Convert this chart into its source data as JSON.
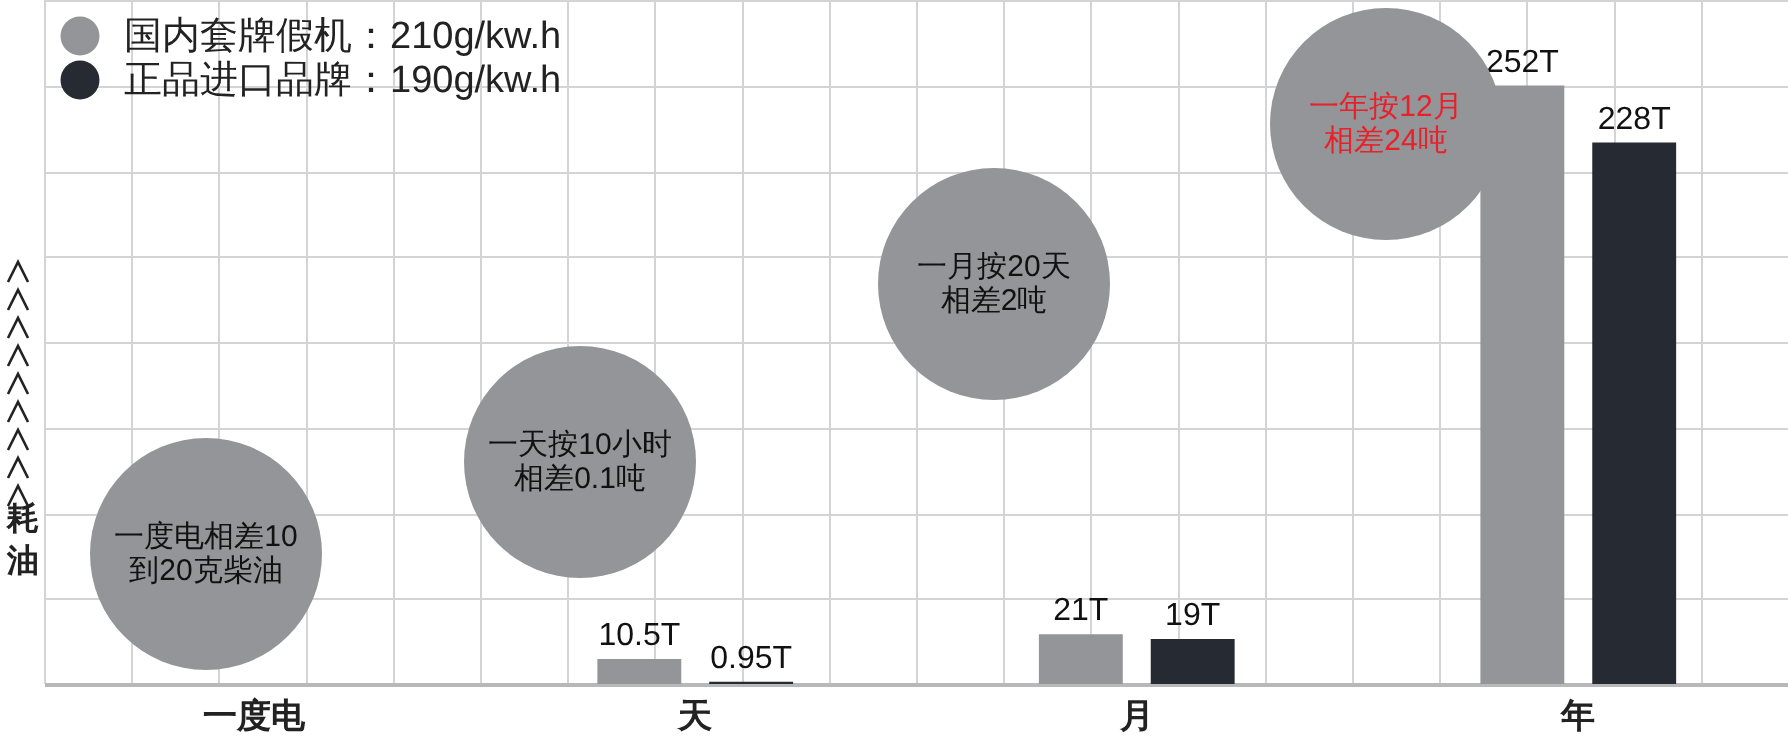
{
  "chart_data": {
    "type": "bar",
    "ylabel": "耗油",
    "categories": [
      "一度电",
      "天",
      "月",
      "年"
    ],
    "series": [
      {
        "name": "国内套牌假机：210g/kw.h",
        "color": "#939599",
        "values": [
          0.00021,
          10.5,
          21,
          252
        ],
        "value_labels": [
          null,
          "10.5T",
          "21T",
          "252T"
        ]
      },
      {
        "name": "正品进口品牌：190g/kw.h",
        "color": "#262b33",
        "values": [
          0.00019,
          0.95,
          19,
          228
        ],
        "value_labels": [
          null,
          "0.95T",
          "19T",
          "228T"
        ]
      }
    ],
    "annotations": [
      "一度电相差10到20克柴油",
      "一天按10小时相差0.1吨",
      "一月按20天相差2吨",
      "一年按12月相差24吨"
    ],
    "grid": true,
    "legend": "top left"
  }
}
